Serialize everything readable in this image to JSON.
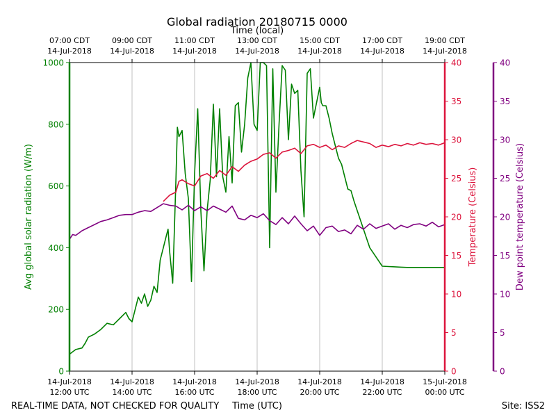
{
  "chart_data": {
    "type": "line",
    "title": "Global radiation 20180715 0000",
    "top_axis_label": "Time (local)",
    "xlabel": "Time (UTC)",
    "x_ticks_utc": [
      {
        "h": 12,
        "line1": "14-Jul-2018",
        "line2": "12:00 UTC"
      },
      {
        "h": 14,
        "line1": "14-Jul-2018",
        "line2": "14:00 UTC"
      },
      {
        "h": 16,
        "line1": "14-Jul-2018",
        "line2": "16:00 UTC"
      },
      {
        "h": 18,
        "line1": "14-Jul-2018",
        "line2": "18:00 UTC"
      },
      {
        "h": 20,
        "line1": "14-Jul-2018",
        "line2": "20:00 UTC"
      },
      {
        "h": 22,
        "line1": "14-Jul-2018",
        "line2": "22:00 UTC"
      },
      {
        "h": 24,
        "line1": "15-Jul-2018",
        "line2": "00:00 UTC"
      }
    ],
    "x_ticks_local": [
      {
        "h": 12,
        "line1": "07:00 CDT",
        "line2": "14-Jul-2018"
      },
      {
        "h": 14,
        "line1": "09:00 CDT",
        "line2": "14-Jul-2018"
      },
      {
        "h": 16,
        "line1": "11:00 CDT",
        "line2": "14-Jul-2018"
      },
      {
        "h": 18,
        "line1": "13:00 CDT",
        "line2": "14-Jul-2018"
      },
      {
        "h": 20,
        "line1": "15:00 CDT",
        "line2": "14-Jul-2018"
      },
      {
        "h": 22,
        "line1": "17:00 CDT",
        "line2": "14-Jul-2018"
      },
      {
        "h": 24,
        "line1": "19:00 CDT",
        "line2": "14-Jul-2018"
      }
    ],
    "xlim": [
      12,
      24
    ],
    "grid": "vertical",
    "axes": {
      "radiation": {
        "label": "Avg global solar radiation (W/m)",
        "ylim": [
          0,
          1000
        ],
        "ticks": [
          0,
          200,
          400,
          600,
          800,
          1000
        ],
        "color": "#008000"
      },
      "temperature": {
        "label": "Temperature (Celsius)",
        "ylim": [
          0,
          40
        ],
        "ticks": [
          0,
          5,
          10,
          15,
          20,
          25,
          30,
          35,
          40
        ],
        "color": "#dc143c"
      },
      "dewpoint": {
        "label": "Dew point temperature (Celsius)",
        "ylim": [
          0,
          40
        ],
        "ticks": [
          0,
          5,
          10,
          15,
          20,
          25,
          30,
          35,
          40
        ],
        "color": "#800080"
      }
    },
    "series": [
      {
        "name": "Avg global solar radiation",
        "axis": "radiation",
        "color": "#008000",
        "x": [
          12.0,
          12.2,
          12.4,
          12.5,
          12.6,
          12.8,
          13.0,
          13.2,
          13.4,
          13.6,
          13.8,
          13.9,
          14.0,
          14.1,
          14.2,
          14.3,
          14.4,
          14.5,
          14.6,
          14.7,
          14.8,
          14.9,
          15.0,
          15.1,
          15.15,
          15.2,
          15.3,
          15.4,
          15.45,
          15.5,
          15.6,
          15.7,
          15.8,
          15.9,
          16.0,
          16.1,
          16.2,
          16.3,
          16.4,
          16.5,
          16.6,
          16.7,
          16.8,
          16.9,
          17.0,
          17.1,
          17.2,
          17.3,
          17.4,
          17.5,
          17.6,
          17.7,
          17.8,
          17.9,
          18.0,
          18.1,
          18.2,
          18.3,
          18.4,
          18.5,
          18.6,
          18.7,
          18.8,
          18.9,
          19.0,
          19.1,
          19.2,
          19.3,
          19.4,
          19.5,
          19.6,
          19.7,
          19.8,
          19.9,
          20.0,
          20.05,
          20.1,
          20.2,
          20.3,
          20.4,
          20.5,
          20.6,
          20.7,
          20.8,
          20.9,
          21.0,
          21.1,
          21.2,
          21.3,
          21.4,
          21.5,
          21.6,
          21.8,
          22.0,
          22.2,
          22.4,
          22.6,
          22.8,
          23.0,
          23.2,
          23.4,
          23.6,
          23.8,
          24.0
        ],
        "y": [
          55,
          70,
          75,
          90,
          110,
          120,
          135,
          155,
          150,
          170,
          190,
          170,
          160,
          200,
          240,
          220,
          250,
          210,
          230,
          275,
          255,
          360,
          400,
          440,
          460,
          390,
          285,
          610,
          790,
          760,
          780,
          640,
          560,
          290,
          640,
          850,
          520,
          325,
          520,
          620,
          865,
          630,
          850,
          630,
          580,
          760,
          610,
          860,
          870,
          710,
          800,
          950,
          1000,
          800,
          780,
          1000,
          1000,
          990,
          400,
          980,
          580,
          800,
          990,
          975,
          750,
          930,
          900,
          910,
          650,
          500,
          965,
          980,
          820,
          870,
          920,
          870,
          860,
          860,
          820,
          770,
          730,
          690,
          670,
          630,
          590,
          585,
          550,
          520,
          490,
          460,
          430,
          400,
          370,
          340,
          339,
          338,
          337,
          336,
          336,
          336,
          336,
          336,
          336,
          336
        ]
      },
      {
        "name": "Temperature",
        "axis": "temperature",
        "color": "#dc143c",
        "x": [
          15.0,
          15.2,
          15.4,
          15.5,
          15.6,
          15.8,
          16.0,
          16.2,
          16.4,
          16.6,
          16.8,
          17.0,
          17.2,
          17.4,
          17.6,
          17.8,
          18.0,
          18.2,
          18.4,
          18.6,
          18.8,
          19.0,
          19.2,
          19.4,
          19.6,
          19.8,
          20.0,
          20.2,
          20.4,
          20.6,
          20.8,
          21.0,
          21.2,
          21.4,
          21.6,
          21.8,
          22.0,
          22.2,
          22.4,
          22.6,
          22.8,
          23.0,
          23.2,
          23.4,
          23.6,
          23.8,
          24.0
        ],
        "y": [
          22.0,
          22.8,
          23.2,
          24.6,
          24.8,
          24.3,
          24.0,
          25.3,
          25.6,
          25.0,
          26.0,
          25.4,
          26.5,
          25.9,
          26.7,
          27.2,
          27.5,
          28.1,
          28.3,
          27.6,
          28.4,
          28.6,
          28.9,
          28.2,
          29.2,
          29.4,
          29.0,
          29.3,
          28.7,
          29.2,
          29.0,
          29.5,
          29.9,
          29.7,
          29.5,
          29.0,
          29.3,
          29.1,
          29.4,
          29.2,
          29.5,
          29.3,
          29.6,
          29.4,
          29.5,
          29.3,
          29.6
        ]
      },
      {
        "name": "Dew point temperature",
        "axis": "dewpoint",
        "color": "#800080",
        "x": [
          12.0,
          12.1,
          12.2,
          12.4,
          12.6,
          12.8,
          13.0,
          13.2,
          13.4,
          13.6,
          13.8,
          14.0,
          14.2,
          14.4,
          14.6,
          14.8,
          15.0,
          15.2,
          15.4,
          15.6,
          15.8,
          16.0,
          16.2,
          16.4,
          16.6,
          16.8,
          17.0,
          17.2,
          17.4,
          17.6,
          17.8,
          18.0,
          18.2,
          18.4,
          18.6,
          18.8,
          19.0,
          19.2,
          19.4,
          19.6,
          19.8,
          20.0,
          20.2,
          20.4,
          20.6,
          20.8,
          21.0,
          21.2,
          21.4,
          21.6,
          21.8,
          22.0,
          22.2,
          22.4,
          22.6,
          22.8,
          23.0,
          23.2,
          23.4,
          23.6,
          23.8,
          24.0
        ],
        "y": [
          17.1,
          17.7,
          17.6,
          18.2,
          18.6,
          19.0,
          19.4,
          19.6,
          19.9,
          20.2,
          20.3,
          20.3,
          20.6,
          20.8,
          20.7,
          21.2,
          21.7,
          21.5,
          21.4,
          20.9,
          21.5,
          20.8,
          21.3,
          20.8,
          21.4,
          21.0,
          20.6,
          21.4,
          19.8,
          19.6,
          20.2,
          19.9,
          20.4,
          19.5,
          19.0,
          19.9,
          19.1,
          20.1,
          19.1,
          18.2,
          18.8,
          17.6,
          18.6,
          18.8,
          18.1,
          18.3,
          17.8,
          18.9,
          18.4,
          19.1,
          18.5,
          18.8,
          19.1,
          18.4,
          18.9,
          18.6,
          19.0,
          19.1,
          18.8,
          19.3,
          18.7,
          19.0
        ]
      }
    ],
    "footer_left": "REAL-TIME DATA, NOT CHECKED FOR QUALITY",
    "footer_right": "Site: ISS2"
  }
}
